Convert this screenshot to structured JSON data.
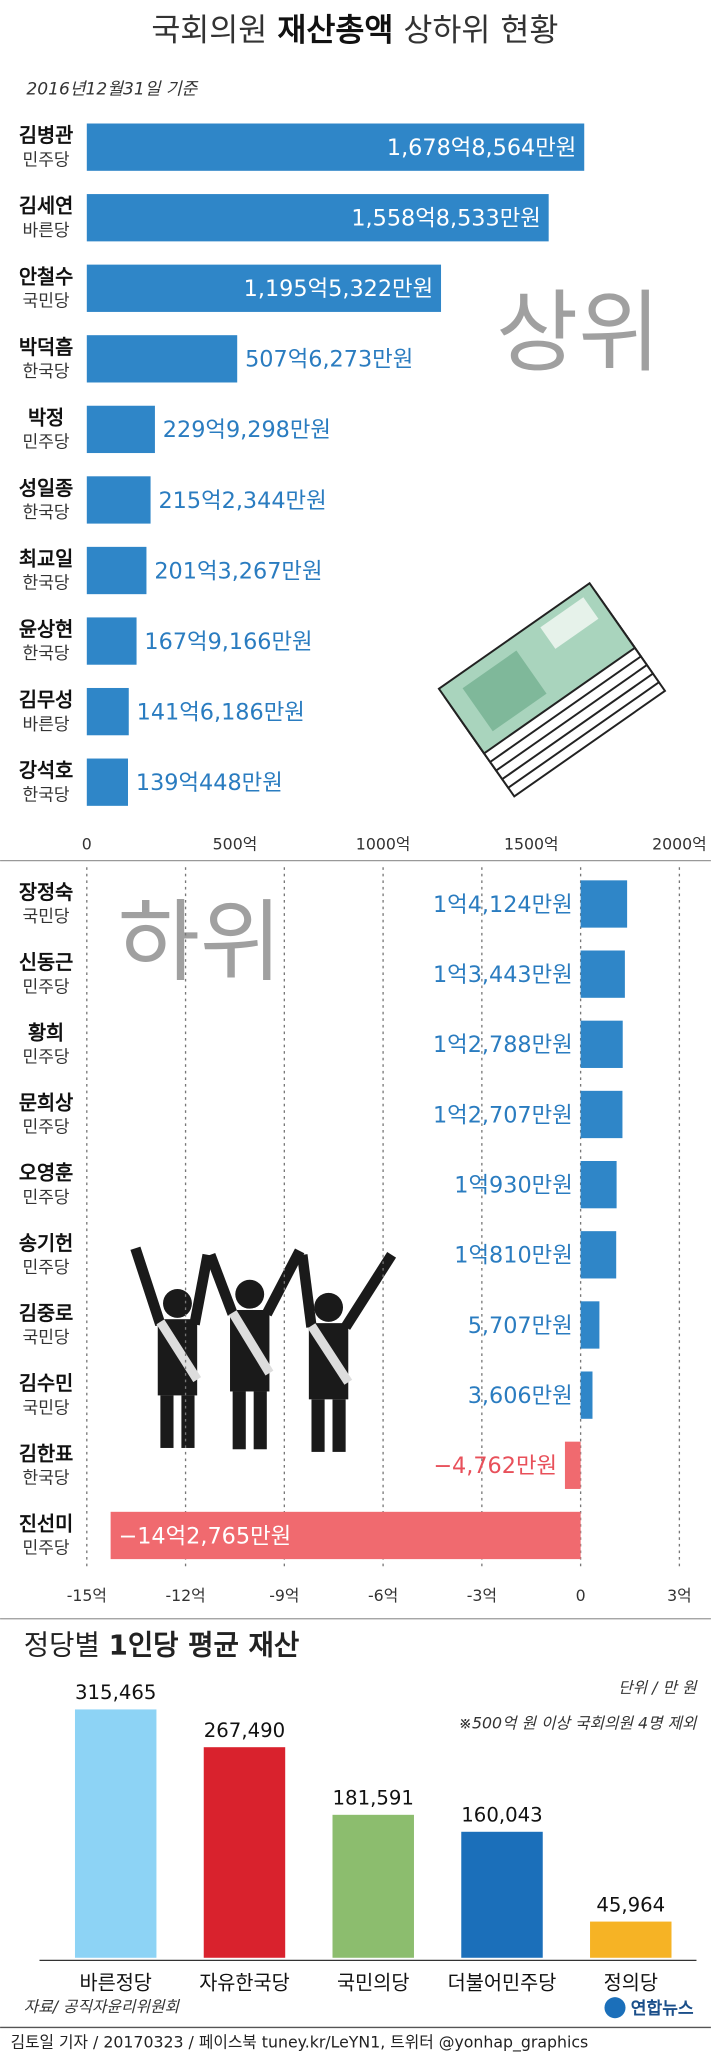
{
  "title": {
    "pre": "국회의원",
    "bold": "재산총액",
    "post": "상하위 현황"
  },
  "date": "2016년12월31일 기준",
  "chart_data": [
    {
      "type": "bar",
      "orientation": "horizontal",
      "label": "상위",
      "categories": [
        "김병관",
        "김세연",
        "안철수",
        "박덕흠",
        "박정",
        "성일종",
        "최교일",
        "윤상현",
        "김무성",
        "강석호"
      ],
      "parties": [
        "민주당",
        "바른당",
        "국민당",
        "한국당",
        "민주당",
        "한국당",
        "한국당",
        "한국당",
        "바른당",
        "한국당"
      ],
      "values": [
        1678.8564,
        1558.8533,
        1195.5322,
        507.6273,
        229.9298,
        215.2344,
        201.3267,
        167.9166,
        141.6186,
        139.0448
      ],
      "value_labels": [
        "1,678억8,564만원",
        "1,558억8,533만원",
        "1,195억5,322만원",
        "507억6,273만원",
        "229억9,298만원",
        "215억2,344만원",
        "201억3,267만원",
        "167억9,166만원",
        "141억6,186만원",
        "139억448만원"
      ],
      "color": "#2f86c8",
      "xlim": [
        0,
        2000
      ],
      "xticks": [
        0,
        {
          "value": 500,
          "label": "500억"
        },
        {
          "value": 1000,
          "label": "1000억"
        },
        {
          "value": 1500,
          "label": "1500억"
        },
        {
          "value": 2000,
          "label": "2000억"
        }
      ],
      "grid": false
    },
    {
      "type": "bar",
      "orientation": "horizontal",
      "label": "하위",
      "categories": [
        "장정숙",
        "신동근",
        "황희",
        "문희상",
        "오영훈",
        "송기헌",
        "김중로",
        "김수민",
        "김한표",
        "진선미"
      ],
      "parties": [
        "국민당",
        "민주당",
        "민주당",
        "민주당",
        "민주당",
        "민주당",
        "국민당",
        "국민당",
        "한국당",
        "민주당"
      ],
      "values": [
        1.4124,
        1.3443,
        1.2788,
        1.2707,
        1.093,
        1.081,
        0.5707,
        0.3606,
        -0.4762,
        -14.2765
      ],
      "value_labels": [
        "1억4,124만원",
        "1억3,443만원",
        "1억2,788만원",
        "1억2,707만원",
        "1억930만원",
        "1억810만원",
        "5,707만원",
        "3,606만원",
        "−4,762만원",
        "−14억2,765만원"
      ],
      "color": "#2f86c8",
      "negative_color": "#f06a6f",
      "xlim": [
        -15,
        3
      ],
      "xticks": [
        {
          "value": -15,
          "label": "-15억"
        },
        {
          "value": -12,
          "label": "-12억"
        },
        {
          "value": -9,
          "label": "-9억"
        },
        {
          "value": -6,
          "label": "-6억"
        },
        {
          "value": -3,
          "label": "-3억"
        },
        0,
        {
          "value": 3,
          "label": "3억"
        }
      ],
      "grid": true
    },
    {
      "type": "bar",
      "orientation": "vertical",
      "title_light": "정당별",
      "title": "1인당 평균 재산",
      "unit": "단위 / 만 원",
      "note": "※500억 원 이상 국회의원 4명 제외",
      "categories": [
        "바른정당",
        "자유한국당",
        "국민의당",
        "더불어민주당",
        "정의당"
      ],
      "values": [
        315465,
        267490,
        181591,
        160043,
        45964
      ],
      "value_labels": [
        "315,465",
        "267,490",
        "181,591",
        "160,043",
        "45,964"
      ],
      "colors": [
        "#8dd3f5",
        "#d9222d",
        "#8cbd6e",
        "#1b6fba",
        "#f6b325"
      ]
    }
  ],
  "source": "자료/ 공직자윤리위원회",
  "logo": "연합뉴스",
  "footer": "김토일 기자 / 20170323 / 페이스북 tuney.kr/LeYN1, 트위터 @yonhap_graphics"
}
